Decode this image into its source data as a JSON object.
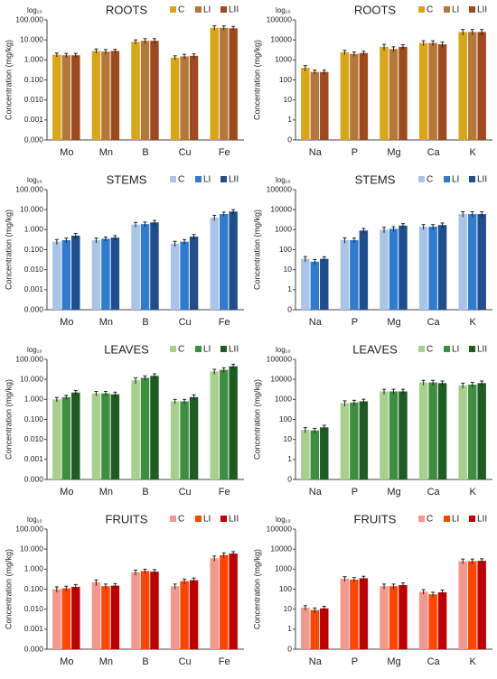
{
  "chart_data": [
    {
      "type": "bar",
      "title": "ROOTS",
      "axis_note": "log₁₀",
      "ylabel": "Concentration (mg/kg)",
      "log_scale": true,
      "categories": [
        "Mo",
        "Mn",
        "B",
        "Cu",
        "Fe"
      ],
      "series": [
        {
          "name": "C",
          "color": "#d8a617",
          "values": [
            1.8,
            2.8,
            8,
            1.3,
            40
          ],
          "errors": [
            0.4,
            0.7,
            2,
            0.3,
            10
          ]
        },
        {
          "name": "LI",
          "color": "#b5783b",
          "values": [
            1.7,
            2.6,
            9,
            1.5,
            40
          ],
          "errors": [
            0.4,
            0.7,
            2.5,
            0.4,
            10
          ]
        },
        {
          "name": "LII",
          "color": "#9e4a1e",
          "values": [
            1.7,
            2.8,
            9,
            1.6,
            38
          ],
          "errors": [
            0.4,
            0.6,
            2.5,
            0.4,
            9
          ]
        }
      ],
      "ylim": [
        0.0001,
        100
      ],
      "yticks": [
        {
          "value": 0.0001,
          "label": "0.000"
        },
        {
          "value": 0.001,
          "label": "0.001"
        },
        {
          "value": 0.01,
          "label": "0.010"
        },
        {
          "value": 0.1,
          "label": "0.100"
        },
        {
          "value": 1,
          "label": "1.000"
        },
        {
          "value": 10,
          "label": "10.000"
        },
        {
          "value": 100,
          "label": "100.000"
        }
      ]
    },
    {
      "type": "bar",
      "title": "ROOTS",
      "axis_note": "log₁₀",
      "ylabel": "Concentration (mg/kg)",
      "log_scale": true,
      "categories": [
        "Na",
        "P",
        "Mg",
        "Ca",
        "K"
      ],
      "series": [
        {
          "name": "C",
          "color": "#d8a617",
          "values": [
            400,
            2400,
            4500,
            7000,
            25000
          ],
          "errors": [
            120,
            600,
            1500,
            2000,
            8000
          ]
        },
        {
          "name": "LI",
          "color": "#b5783b",
          "values": [
            250,
            2000,
            3500,
            7000,
            25000
          ],
          "errors": [
            60,
            500,
            1000,
            2000,
            8000
          ]
        },
        {
          "name": "LII",
          "color": "#9e4a1e",
          "values": [
            250,
            2200,
            4500,
            6000,
            25000
          ],
          "errors": [
            60,
            500,
            1200,
            1800,
            8000
          ]
        }
      ],
      "ylim": [
        0.1,
        100000
      ],
      "yticks": [
        {
          "value": 0.1,
          "label": "0"
        },
        1,
        10,
        100,
        1000,
        10000,
        100000
      ]
    },
    {
      "type": "bar",
      "title": "STEMS",
      "axis_note": "log₁₀",
      "ylabel": "Concentration (mg/kg)",
      "log_scale": true,
      "categories": [
        "Mo",
        "Mn",
        "B",
        "Cu",
        "Fe"
      ],
      "series": [
        {
          "name": "C",
          "color": "#a9c4e8",
          "values": [
            0.25,
            0.3,
            1.8,
            0.2,
            4
          ],
          "errors": [
            0.07,
            0.08,
            0.5,
            0.06,
            1.2
          ]
        },
        {
          "name": "LI",
          "color": "#2e7bcf",
          "values": [
            0.3,
            0.35,
            1.9,
            0.25,
            6
          ],
          "errors": [
            0.08,
            0.08,
            0.5,
            0.07,
            1.5
          ]
        },
        {
          "name": "LII",
          "color": "#1f4e8c",
          "values": [
            0.5,
            0.4,
            2.3,
            0.45,
            8
          ],
          "errors": [
            0.15,
            0.1,
            0.6,
            0.12,
            2
          ]
        }
      ],
      "ylim": [
        0.0001,
        100
      ],
      "yticks": [
        {
          "value": 0.0001,
          "label": "0.000"
        },
        {
          "value": 0.001,
          "label": "0.001"
        },
        {
          "value": 0.01,
          "label": "0.010"
        },
        {
          "value": 0.1,
          "label": "0.100"
        },
        {
          "value": 1,
          "label": "1.000"
        },
        {
          "value": 10,
          "label": "10.000"
        },
        {
          "value": 100,
          "label": "100.000"
        }
      ]
    },
    {
      "type": "bar",
      "title": "STEMS",
      "axis_note": "log₁₀",
      "ylabel": "Concentration (mg/kg)",
      "log_scale": true,
      "categories": [
        "Na",
        "P",
        "Mg",
        "Ca",
        "K"
      ],
      "series": [
        {
          "name": "C",
          "color": "#a9c4e8",
          "values": [
            35,
            300,
            1000,
            1400,
            6000
          ],
          "errors": [
            10,
            90,
            300,
            400,
            1800
          ]
        },
        {
          "name": "LI",
          "color": "#2e7bcf",
          "values": [
            25,
            300,
            1100,
            1400,
            6000
          ],
          "errors": [
            7,
            80,
            300,
            400,
            1800
          ]
        },
        {
          "name": "LII",
          "color": "#1f4e8c",
          "values": [
            35,
            900,
            1600,
            1700,
            6000
          ],
          "errors": [
            9,
            250,
            400,
            450,
            1800
          ]
        }
      ],
      "ylim": [
        0.1,
        100000
      ],
      "yticks": [
        {
          "value": 0.1,
          "label": "0"
        },
        1,
        10,
        100,
        1000,
        10000,
        100000
      ]
    },
    {
      "type": "bar",
      "title": "LEAVES",
      "axis_note": "log₁₀",
      "ylabel": "Concentration (mg/kg)",
      "log_scale": true,
      "categories": [
        "Mo",
        "Mn",
        "B",
        "Cu",
        "Fe"
      ],
      "series": [
        {
          "name": "C",
          "color": "#a8d08d",
          "values": [
            1.0,
            2.0,
            9,
            0.8,
            25
          ],
          "errors": [
            0.25,
            0.5,
            3,
            0.2,
            7
          ]
        },
        {
          "name": "LI",
          "color": "#3e8e41",
          "values": [
            1.3,
            2.0,
            12,
            0.8,
            30
          ],
          "errors": [
            0.3,
            0.5,
            3,
            0.2,
            8
          ]
        },
        {
          "name": "LII",
          "color": "#1e5c24",
          "values": [
            2.2,
            1.8,
            15,
            1.3,
            45
          ],
          "errors": [
            0.6,
            0.5,
            4,
            0.4,
            12
          ]
        }
      ],
      "ylim": [
        0.0001,
        100
      ],
      "yticks": [
        {
          "value": 0.0001,
          "label": "0.000"
        },
        {
          "value": 0.001,
          "label": "0.001"
        },
        {
          "value": 0.01,
          "label": "0.010"
        },
        {
          "value": 0.1,
          "label": "0.100"
        },
        {
          "value": 1,
          "label": "1.000"
        },
        {
          "value": 10,
          "label": "10.000"
        },
        {
          "value": 100,
          "label": "100.000"
        }
      ]
    },
    {
      "type": "bar",
      "title": "LEAVES",
      "axis_note": "log₁₀",
      "ylabel": "Concentration (mg/kg)",
      "log_scale": true,
      "categories": [
        "Na",
        "P",
        "Mg",
        "Ca",
        "K"
      ],
      "series": [
        {
          "name": "C",
          "color": "#a8d08d",
          "values": [
            30,
            650,
            2500,
            7000,
            5000
          ],
          "errors": [
            9,
            200,
            700,
            2000,
            1500
          ]
        },
        {
          "name": "LI",
          "color": "#3e8e41",
          "values": [
            28,
            700,
            2500,
            7000,
            5500
          ],
          "errors": [
            8,
            200,
            700,
            2000,
            1600
          ]
        },
        {
          "name": "LII",
          "color": "#1e5c24",
          "values": [
            40,
            800,
            2500,
            6500,
            6500
          ],
          "errors": [
            11,
            220,
            700,
            1800,
            1800
          ]
        }
      ],
      "ylim": [
        0.1,
        100000
      ],
      "yticks": [
        {
          "value": 0.1,
          "label": "0"
        },
        1,
        10,
        100,
        1000,
        10000,
        100000
      ]
    },
    {
      "type": "bar",
      "title": "FRUITS",
      "axis_note": "log₁₀",
      "ylabel": "Concentration (mg/kg)",
      "log_scale": true,
      "categories": [
        "Mo",
        "Mn",
        "B",
        "Cu",
        "Fe"
      ],
      "series": [
        {
          "name": "C",
          "color": "#f4978e",
          "values": [
            0.1,
            0.22,
            0.7,
            0.14,
            3.5
          ],
          "errors": [
            0.03,
            0.07,
            0.2,
            0.04,
            1
          ]
        },
        {
          "name": "LI",
          "color": "#ff4500",
          "values": [
            0.11,
            0.14,
            0.8,
            0.25,
            5
          ],
          "errors": [
            0.03,
            0.04,
            0.2,
            0.07,
            1.5
          ]
        },
        {
          "name": "LII",
          "color": "#c00000",
          "values": [
            0.13,
            0.15,
            0.75,
            0.28,
            6
          ],
          "errors": [
            0.04,
            0.04,
            0.2,
            0.08,
            1.5
          ]
        }
      ],
      "ylim": [
        0.0001,
        100
      ],
      "yticks": [
        {
          "value": 0.0001,
          "label": "0.000"
        },
        {
          "value": 0.001,
          "label": "0.001"
        },
        {
          "value": 0.01,
          "label": "0.010"
        },
        {
          "value": 0.1,
          "label": "0.100"
        },
        {
          "value": 1,
          "label": "1.000"
        },
        {
          "value": 10,
          "label": "10.000"
        },
        {
          "value": 100,
          "label": "100.000"
        }
      ]
    },
    {
      "type": "bar",
      "title": "FRUITS",
      "axis_note": "log₁₀",
      "ylabel": "Concentration (mg/kg)",
      "log_scale": true,
      "categories": [
        "Na",
        "P",
        "Mg",
        "Ca",
        "K"
      ],
      "series": [
        {
          "name": "C",
          "color": "#f4978e",
          "values": [
            12,
            330,
            140,
            75,
            2500
          ],
          "errors": [
            3,
            90,
            40,
            20,
            700
          ]
        },
        {
          "name": "LI",
          "color": "#ff4500",
          "values": [
            9,
            300,
            140,
            55,
            2500
          ],
          "errors": [
            2.5,
            80,
            40,
            15,
            700
          ]
        },
        {
          "name": "LII",
          "color": "#c00000",
          "values": [
            11,
            350,
            160,
            70,
            2600
          ],
          "errors": [
            3,
            90,
            45,
            20,
            700
          ]
        }
      ],
      "ylim": [
        0.1,
        100000
      ],
      "yticks": [
        {
          "value": 0.1,
          "label": "0"
        },
        1,
        10,
        100,
        1000,
        10000,
        100000
      ]
    }
  ]
}
